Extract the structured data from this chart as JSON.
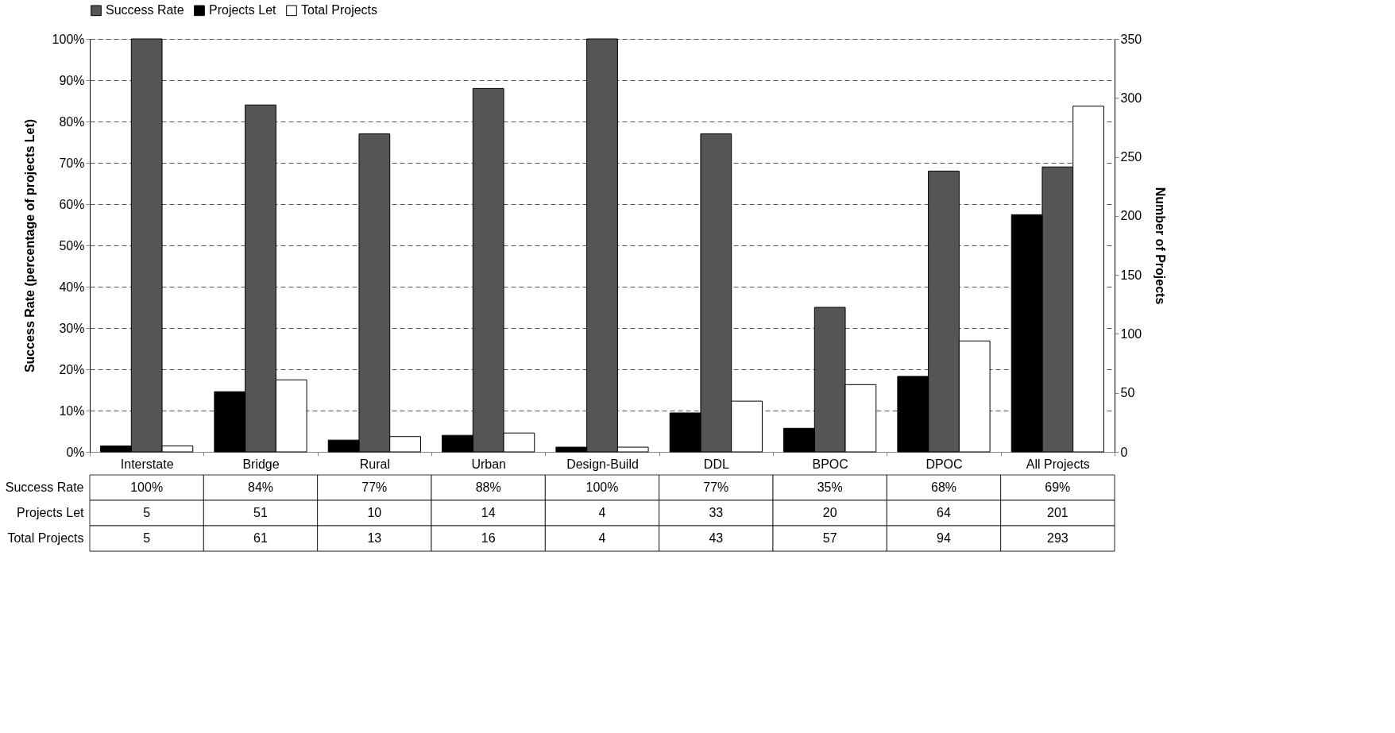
{
  "chart_data": {
    "type": "bar",
    "categories": [
      "Interstate",
      "Bridge",
      "Rural",
      "Urban",
      "Design-Build",
      "DDL",
      "BPOC",
      "DPOC",
      "All Projects"
    ],
    "series": [
      {
        "name": "Success Rate",
        "color": "#555555",
        "values": [
          100,
          84,
          77,
          88,
          100,
          77,
          35,
          68,
          69
        ],
        "value_labels": [
          "100%",
          "84%",
          "77%",
          "88%",
          "100%",
          "77%",
          "35%",
          "68%",
          "69%"
        ]
      },
      {
        "name": "Projects Let",
        "color": "#000000",
        "axis": "y2",
        "values": [
          5,
          51,
          10,
          14,
          4,
          33,
          20,
          64,
          201
        ],
        "value_labels": [
          "5",
          "51",
          "10",
          "14",
          "4",
          "33",
          "20",
          "64",
          "201"
        ]
      },
      {
        "name": "Total Projects",
        "color": "#ffffff",
        "axis": "y2",
        "values": [
          5,
          61,
          13,
          16,
          4,
          43,
          57,
          94,
          293
        ],
        "value_labels": [
          "5",
          "61",
          "13",
          "16",
          "4",
          "43",
          "57",
          "94",
          "293"
        ]
      }
    ],
    "ylabel": "Success Rate (percentage of projects Let)",
    "y2label": "Number of Projects",
    "ylim": [
      0,
      100
    ],
    "yticks": [
      {
        "value": 0,
        "label": "0%"
      },
      {
        "value": 10,
        "label": "10%"
      },
      {
        "value": 20,
        "label": "20%"
      },
      {
        "value": 30,
        "label": "30%"
      },
      {
        "value": 40,
        "label": "40%"
      },
      {
        "value": 50,
        "label": "50%"
      },
      {
        "value": 60,
        "label": "60%"
      },
      {
        "value": 70,
        "label": "70%"
      },
      {
        "value": 80,
        "label": "80%"
      },
      {
        "value": 90,
        "label": "90%"
      },
      {
        "value": 100,
        "label": "100%"
      }
    ],
    "y2lim": [
      0,
      350
    ],
    "y2ticks": [
      0,
      50,
      100,
      150,
      200,
      250,
      300,
      350
    ],
    "grid": "y",
    "legend": "top"
  }
}
